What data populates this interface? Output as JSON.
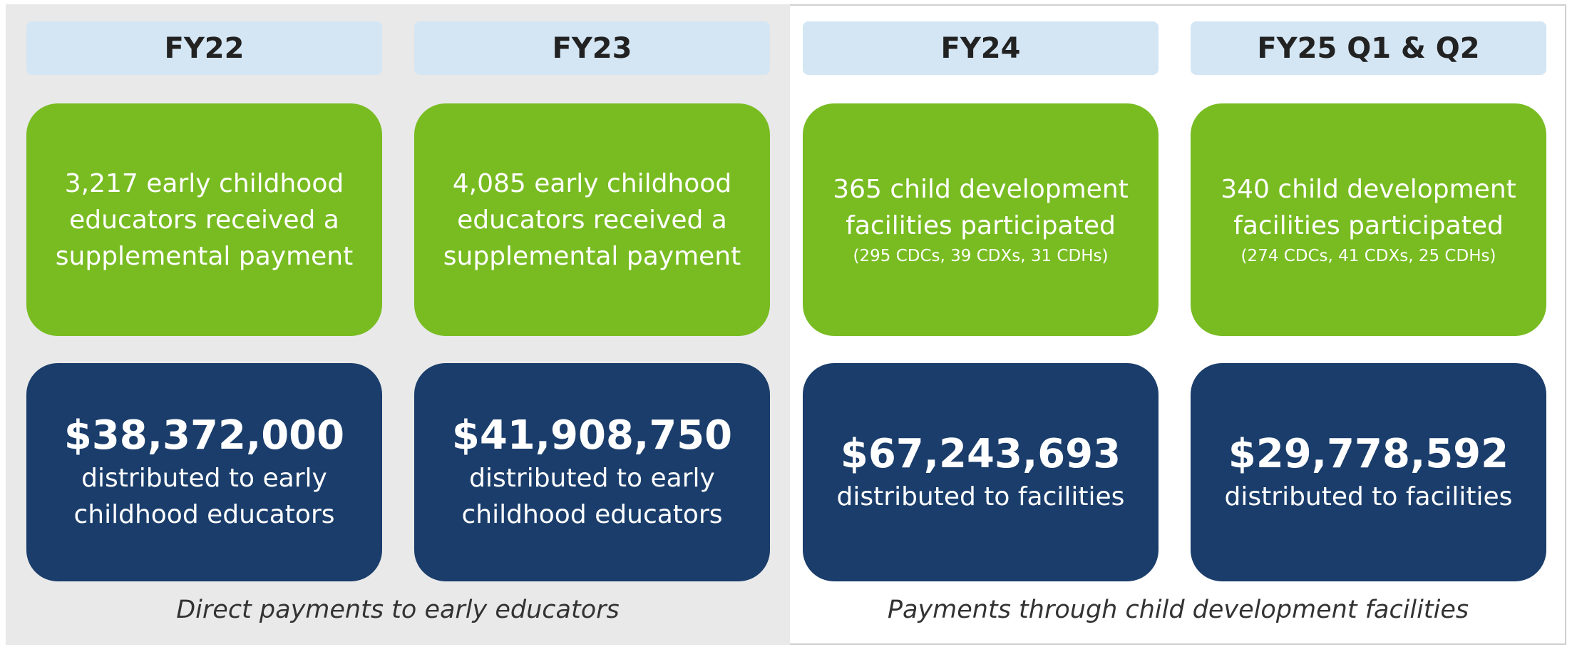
{
  "columns": [
    {
      "header": "FY22",
      "participation": [
        "3,217 early childhood",
        "educators received a",
        "supplemental payment"
      ],
      "amount": "$38,372,000",
      "description": [
        "distributed to early",
        "childhood educators"
      ]
    },
    {
      "header": "FY23",
      "participation": [
        "4,085 early childhood",
        "educators received a",
        "supplemental payment"
      ],
      "amount": "$41,908,750",
      "description": [
        "distributed to early",
        "childhood educators"
      ]
    },
    {
      "header": "FY24",
      "participation": [
        "365 child development",
        "facilities participated"
      ],
      "note": "(295 CDCs, 39 CDXs, 31 CDHs)",
      "amount": "$67,243,693",
      "description": [
        "distributed to facilities"
      ]
    },
    {
      "header": "FY25 Q1 & Q2",
      "participation": [
        "340 child development",
        "facilities participated"
      ],
      "note": "(274 CDCs, 41 CDXs, 25 CDHs)",
      "amount": "$29,778,592",
      "description": [
        "distributed to facilities"
      ]
    }
  ],
  "captions": [
    "Direct payments to early educators",
    "Payments through child development facilities"
  ]
}
